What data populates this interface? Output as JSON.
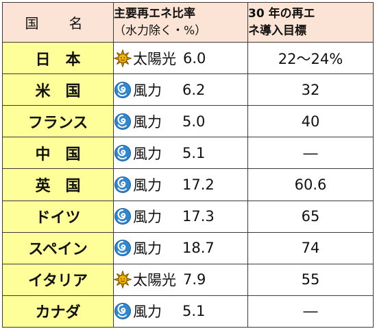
{
  "header": {
    "country": "国　名",
    "share_line1": "主要再エネ比率",
    "share_line2": "（水力除く・%）",
    "target_line1": "30 年の再エ",
    "target_line2": "ネ導入目標"
  },
  "rows": [
    {
      "country": "日　本",
      "icon": "sun-icon",
      "source": "太陽光",
      "value": "6.0",
      "target": "22～24%"
    },
    {
      "country": "米　国",
      "icon": "wind-icon",
      "source": "風力",
      "value": "6.2",
      "target": "32"
    },
    {
      "country": "フランス",
      "icon": "wind-icon",
      "source": "風力",
      "value": "5.0",
      "target": "40"
    },
    {
      "country": "中　国",
      "icon": "wind-icon",
      "source": "風力",
      "value": "5.1",
      "target": "―"
    },
    {
      "country": "英　国",
      "icon": "wind-icon",
      "source": "風力",
      "value": "17.2",
      "target": "60.6"
    },
    {
      "country": "ドイツ",
      "icon": "wind-icon",
      "source": "風力",
      "value": "17.3",
      "target": "65"
    },
    {
      "country": "スペイン",
      "icon": "wind-icon",
      "source": "風力",
      "value": "18.7",
      "target": "74"
    },
    {
      "country": "イタリア",
      "icon": "sun-icon",
      "source": "太陽光",
      "value": "7.9",
      "target": "55"
    },
    {
      "country": "カナダ",
      "icon": "wind-icon",
      "source": "風力",
      "value": "5.1",
      "target": "―"
    }
  ]
}
